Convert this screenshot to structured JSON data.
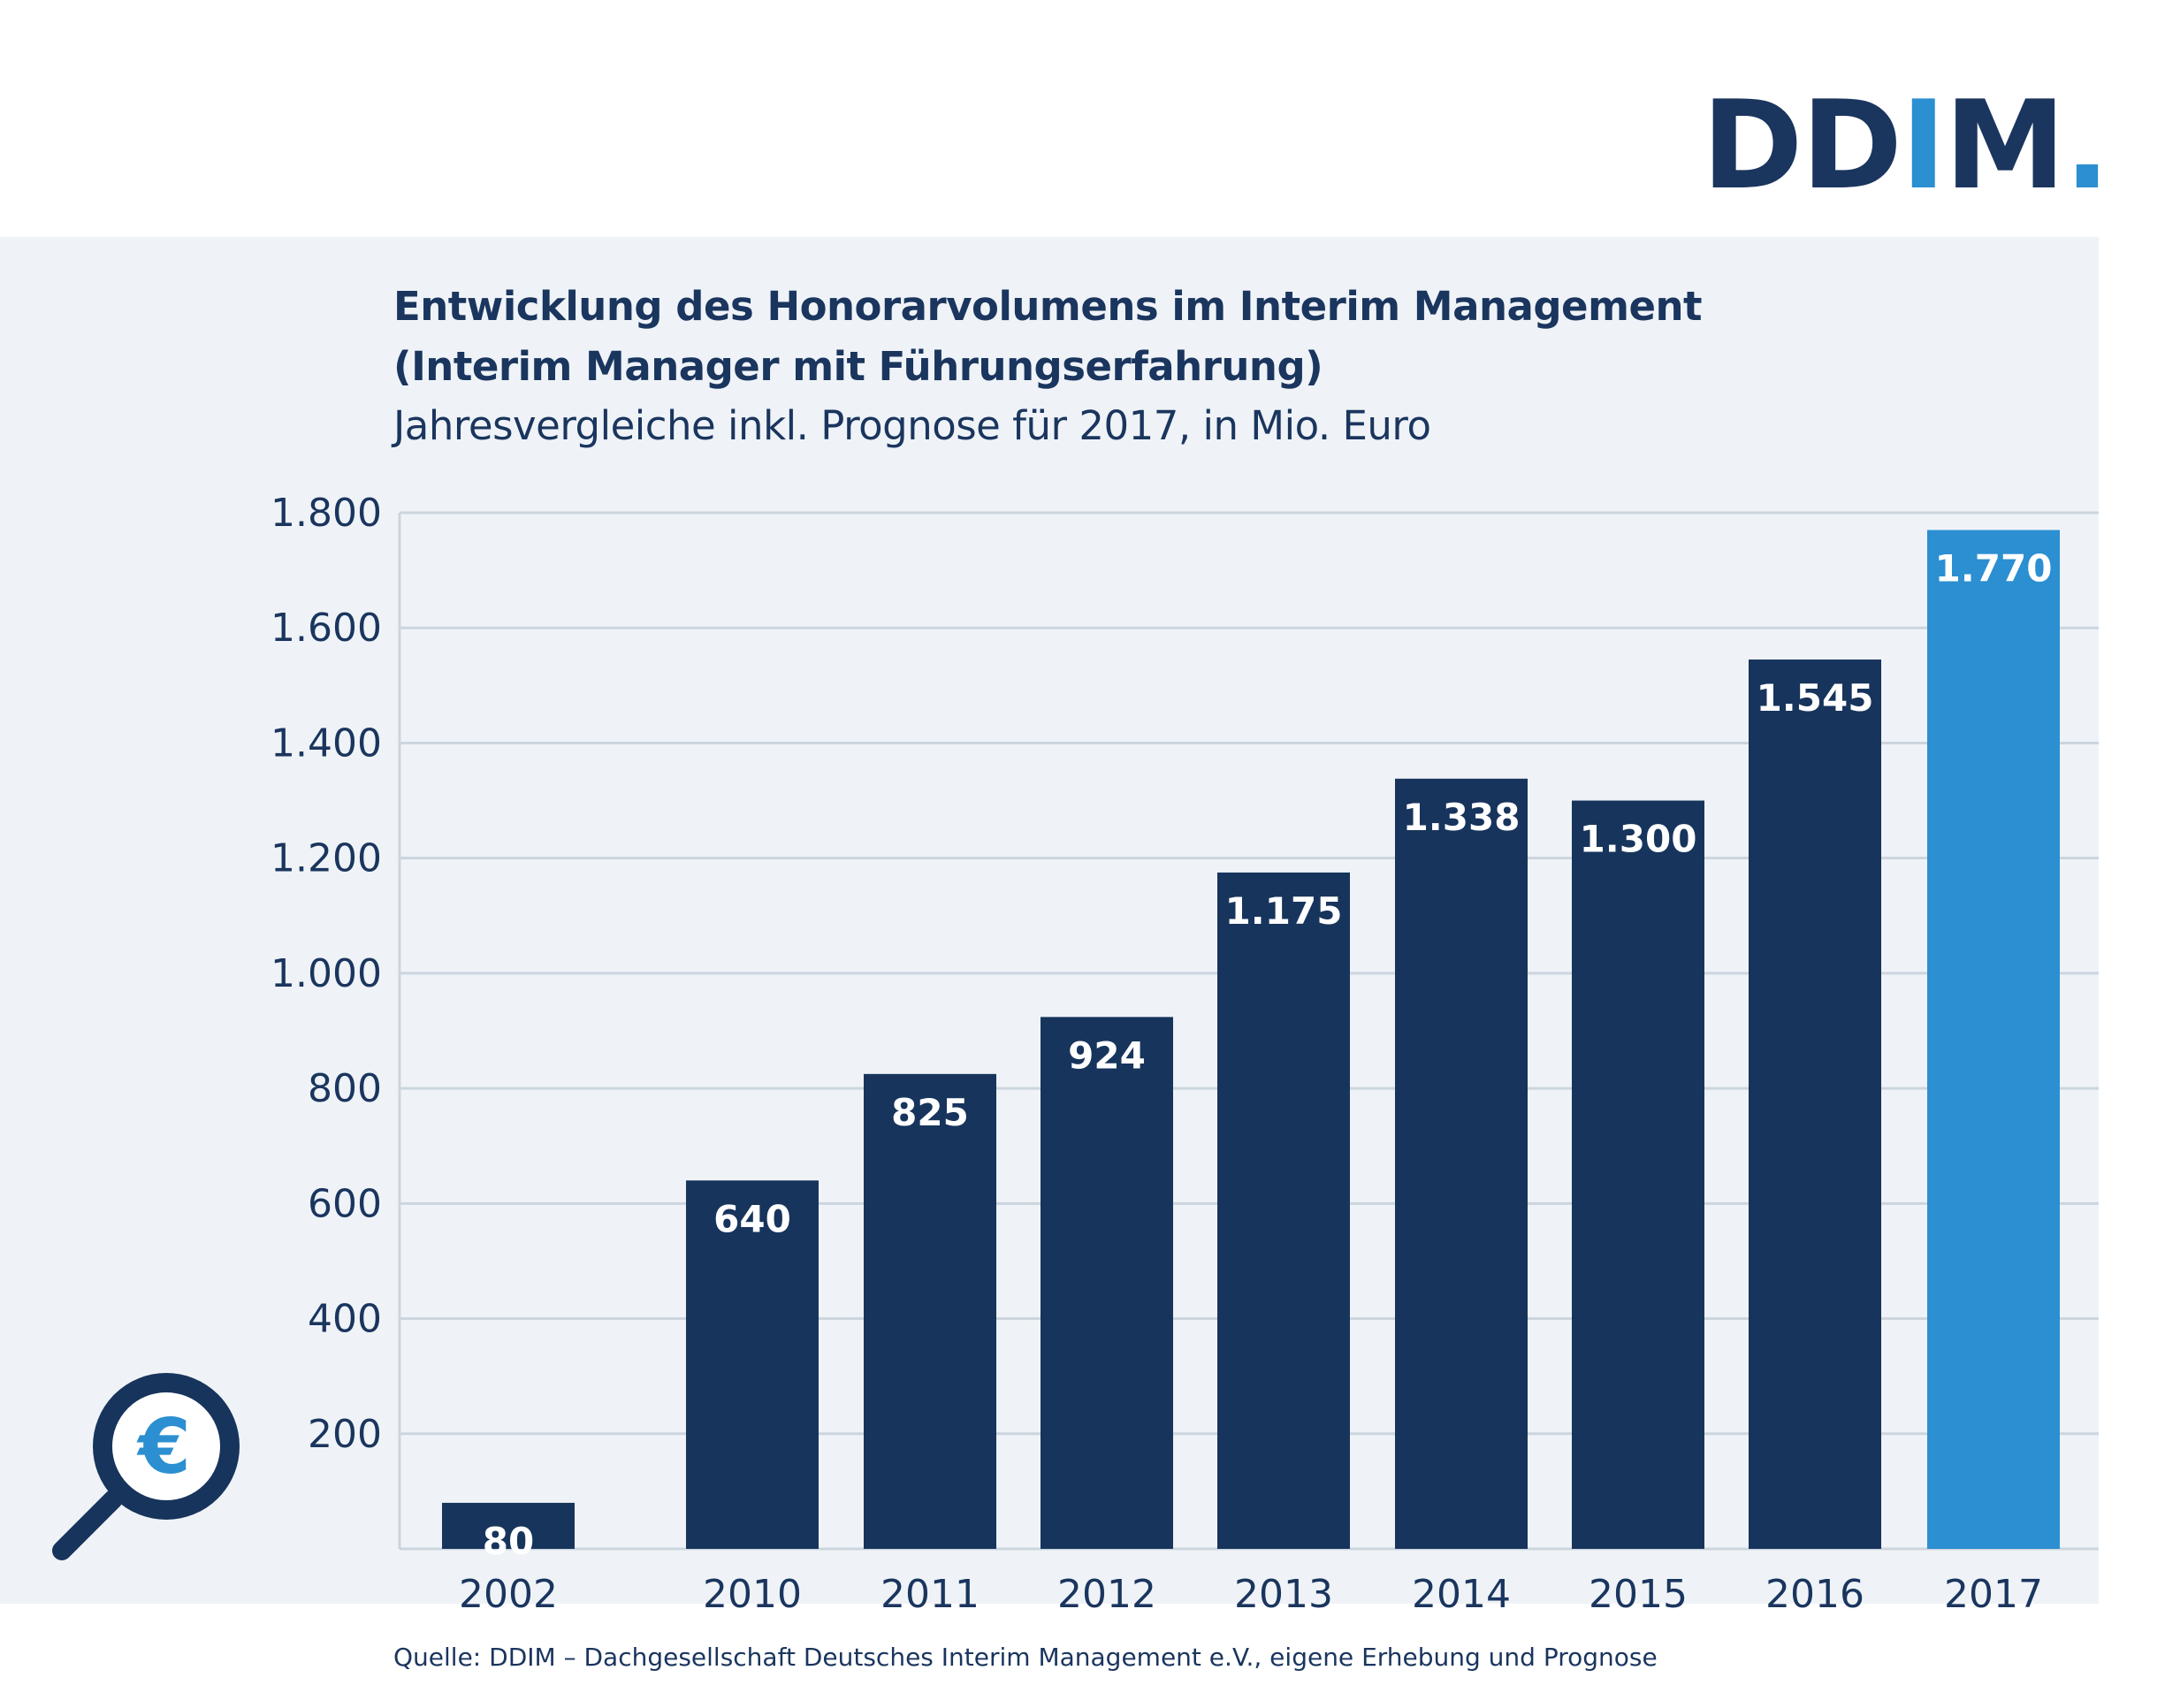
{
  "logo": {
    "prefix": "DD",
    "highlight": "I",
    "suffix": "M",
    "dot": "."
  },
  "chart_data": {
    "type": "bar",
    "title": "Entwicklung des Honorarvolumens im Interim Management",
    "title_line2": "(Interim Manager mit Führungserfahrung)",
    "subtitle": "Jahresvergleiche inkl. Prognose für 2017, in Mio. Euro",
    "categories": [
      "2002",
      "2010",
      "2011",
      "2012",
      "2013",
      "2014",
      "2015",
      "2016",
      "2017"
    ],
    "values": [
      80,
      640,
      825,
      924,
      1175,
      1338,
      1300,
      1545,
      1770
    ],
    "value_labels": [
      "80",
      "640",
      "825",
      "924",
      "1.175",
      "1.338",
      "1.300",
      "1.545",
      "1.770"
    ],
    "ylim": [
      0,
      1800
    ],
    "yticks": [
      200,
      400,
      600,
      800,
      1000,
      1200,
      1400,
      1600,
      1800
    ],
    "ytick_labels": [
      "200",
      "400",
      "600",
      "800",
      "1.000",
      "1.200",
      "1.400",
      "1.600",
      "1.800"
    ],
    "grid": true,
    "bar_color": "#17345c",
    "highlight_color": "#2b8fd1",
    "highlight_category": "2017",
    "xlabel": "",
    "ylabel": ""
  },
  "icon": {
    "name": "euro-search-icon",
    "symbol": "€"
  },
  "source": "Quelle: DDIM – Dachgesellschaft Deutsches Interim Management e.V., eigene Erhebung und Prognose",
  "colors": {
    "navy": "#17345c",
    "accent": "#2b8fd1",
    "panel": "#eff3f7",
    "grid": "#ccd5de"
  }
}
